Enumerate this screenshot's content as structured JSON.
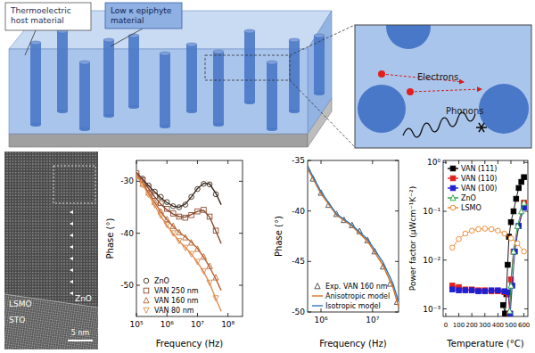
{
  "schematic": {
    "host_label": "Thermoelectric host material",
    "epiphyte_label": "Low κ epiphyte material",
    "electrons_label": "Electrons",
    "phonons_label": "Phonons"
  },
  "tem_image": {
    "labels": {
      "film": "ZnO",
      "buffer": "LSMO",
      "substrate": "STO"
    },
    "scale_bar": "5 nm"
  },
  "chart_data": [
    {
      "type": "scatter",
      "x_label": "Frequency (Hz)",
      "y_label": "Phase (°)",
      "log": "x",
      "xlim": [
        100000,
        300000000
      ],
      "xticks": [
        {
          "value": 100000,
          "label": "10⁵"
        },
        {
          "value": 1000000,
          "label": "10⁶"
        },
        {
          "value": 10000000,
          "label": "10⁷"
        },
        {
          "value": 100000000,
          "label": "10⁸"
        }
      ],
      "ylim": [
        -56,
        -26
      ],
      "yticks": [
        -30,
        -40,
        -50
      ],
      "legend": "lower left",
      "series": [
        {
          "name": "ZnO",
          "type": "scatter",
          "marker": "open-circle",
          "color": "#3d2b1f",
          "x": [
            100000,
            160000,
            250000,
            400000,
            630000,
            1000000,
            1600000,
            2500000,
            4000000,
            6300000,
            10000000,
            16000000,
            25000000,
            40000000
          ],
          "values": [
            -28.5,
            -29.5,
            -30.8,
            -32,
            -33,
            -34,
            -34.8,
            -35,
            -34.5,
            -33,
            -31.5,
            -30.5,
            -30.6,
            -32.5
          ]
        },
        {
          "name": "VAN 250 nm",
          "type": "scatter",
          "marker": "open-square",
          "color": "#8c4a2f",
          "x": [
            100000,
            160000,
            250000,
            400000,
            630000,
            1000000,
            1600000,
            2500000,
            4000000,
            6300000,
            10000000,
            16000000,
            25000000,
            40000000
          ],
          "values": [
            -28.5,
            -29.8,
            -31.3,
            -32.8,
            -34.2,
            -35.3,
            -36.2,
            -36.8,
            -37,
            -36.5,
            -35.8,
            -35.5,
            -36.8,
            -39.5
          ]
        },
        {
          "name": "VAN 160 nm",
          "type": "scatter",
          "marker": "open-triangle",
          "color": "#b8622f",
          "x": [
            100000,
            160000,
            250000,
            400000,
            630000,
            1000000,
            1600000,
            2500000,
            4000000,
            6300000,
            10000000,
            16000000,
            25000000,
            40000000
          ],
          "values": [
            -29,
            -30.5,
            -32.2,
            -34,
            -35.8,
            -37.3,
            -38.6,
            -39.8,
            -40.8,
            -41.8,
            -43,
            -44.5,
            -46.3,
            -48.5
          ]
        },
        {
          "name": "VAN 80 nm",
          "type": "scatter",
          "marker": "open-triangle-down",
          "color": "#e08a4a",
          "x": [
            100000,
            160000,
            250000,
            400000,
            630000,
            1000000,
            1600000,
            2500000,
            4000000,
            6300000,
            10000000,
            16000000,
            25000000,
            40000000
          ],
          "values": [
            -29,
            -30.7,
            -32.6,
            -34.6,
            -36.6,
            -38.4,
            -40,
            -41.5,
            -42.8,
            -44,
            -45.5,
            -47.3,
            -49.5,
            -52.5
          ]
        },
        {
          "type": "line",
          "color": "#3d2b1f",
          "x": [
            100000,
            160000,
            250000,
            400000,
            630000,
            1000000,
            1600000,
            2500000,
            4000000,
            6300000,
            10000000,
            16000000,
            25000000,
            40000000,
            60000000
          ],
          "values": [
            -28.3,
            -29.6,
            -30.9,
            -32.1,
            -33.2,
            -34.1,
            -34.8,
            -35,
            -34.4,
            -33,
            -31.4,
            -30.4,
            -30.5,
            -32.3,
            -34.5
          ]
        },
        {
          "type": "line",
          "color": "#8c4a2f",
          "x": [
            100000,
            160000,
            250000,
            400000,
            630000,
            1000000,
            1600000,
            2500000,
            4000000,
            6300000,
            10000000,
            16000000,
            25000000,
            40000000,
            60000000
          ],
          "values": [
            -28.4,
            -29.8,
            -31.4,
            -33,
            -34.4,
            -35.5,
            -36.3,
            -36.8,
            -36.9,
            -36.4,
            -35.8,
            -35.6,
            -36.9,
            -39.6,
            -42
          ]
        },
        {
          "type": "line",
          "color": "#b8622f",
          "x": [
            100000,
            160000,
            250000,
            400000,
            630000,
            1000000,
            1600000,
            2500000,
            4000000,
            6300000,
            10000000,
            16000000,
            25000000,
            40000000,
            60000000
          ],
          "values": [
            -28.8,
            -30.4,
            -32.2,
            -34.1,
            -35.9,
            -37.4,
            -38.7,
            -39.8,
            -40.7,
            -41.7,
            -42.9,
            -44.6,
            -46.5,
            -48.8,
            -51
          ]
        },
        {
          "type": "line",
          "color": "#e08a4a",
          "x": [
            100000,
            160000,
            250000,
            400000,
            630000,
            1000000,
            1600000,
            2500000,
            4000000,
            6300000,
            10000000,
            16000000,
            25000000,
            40000000,
            60000000
          ],
          "values": [
            -28.9,
            -30.6,
            -32.6,
            -34.7,
            -36.7,
            -38.5,
            -40.1,
            -41.5,
            -42.7,
            -44,
            -45.6,
            -47.4,
            -49.6,
            -52.6,
            -55
          ]
        }
      ]
    },
    {
      "type": "scatter",
      "x_label": "Frequency (Hz)",
      "y_label": "Phase (°)",
      "log": "x",
      "xlim": [
        550000,
        32000000
      ],
      "xticks": [
        {
          "value": 1000000,
          "label": "10⁶"
        },
        {
          "value": 10000000,
          "label": "10⁷"
        }
      ],
      "ylim": [
        -50,
        -35
      ],
      "yticks": [
        -35,
        -40,
        -45,
        -50
      ],
      "legend": "lower left",
      "series": [
        {
          "name": "Exp. VAN 160 nm",
          "type": "scatter",
          "marker": "open-triangle",
          "color": "#444444",
          "x": [
            550000,
            700000,
            1000000,
            1400000,
            2000000,
            2800000,
            4000000,
            5600000,
            8000000,
            11000000,
            16000000,
            22000000,
            30000000
          ],
          "values": [
            -35.8,
            -36.8,
            -38.2,
            -39.4,
            -40.3,
            -40.9,
            -41.4,
            -42,
            -42.9,
            -44,
            -45.5,
            -47.2,
            -49
          ]
        },
        {
          "name": "Anisotropic model",
          "type": "line",
          "color": "#e07020",
          "x": [
            550000,
            1000000,
            2000000,
            4000000,
            8000000,
            16000000,
            25000000,
            32000000
          ],
          "values": [
            -35.8,
            -38.3,
            -40.4,
            -41.5,
            -43,
            -45.4,
            -47.6,
            -49.5
          ]
        },
        {
          "name": "Isotropic model",
          "type": "line",
          "color": "#2f78b8",
          "x": [
            550000,
            1000000,
            2000000,
            4000000,
            8000000,
            16000000,
            25000000,
            32000000
          ],
          "values": [
            -35.6,
            -38.1,
            -40.3,
            -41.4,
            -42.8,
            -45.1,
            -47.2,
            -49
          ]
        }
      ]
    },
    {
      "type": "line",
      "x_label": "Temperature (°C)",
      "y_label": "Power factor (μWcm⁻¹K⁻²)",
      "log": "y",
      "xlim": [
        -20,
        630
      ],
      "xticks": [
        0,
        100,
        200,
        300,
        400,
        500,
        600
      ],
      "ylim": [
        0.0007,
        1.1
      ],
      "yticks": [
        {
          "value": 1,
          "label": "10⁰"
        },
        {
          "value": 0.1,
          "label": "10⁻¹"
        },
        {
          "value": 0.01,
          "label": "10⁻²"
        },
        {
          "value": 0.001,
          "label": "10⁻³"
        }
      ],
      "legend": "upper left",
      "series": [
        {
          "name": "VAN (111)",
          "type": "line",
          "marker": "square",
          "color": "#000000",
          "x": [
            440,
            455,
            465,
            475,
            485,
            500,
            520,
            540,
            560,
            580,
            600
          ],
          "values": [
            0.0012,
            0.0008,
            0.002,
            0.008,
            0.03,
            0.06,
            0.1,
            0.18,
            0.3,
            0.4,
            0.5
          ]
        },
        {
          "name": "VAN (110)",
          "type": "line",
          "marker": "square",
          "color": "#e02020",
          "x": [
            50,
            100,
            150,
            200,
            250,
            300,
            350,
            400,
            450,
            480,
            490,
            500,
            520,
            560,
            600
          ],
          "values": [
            0.003,
            0.0028,
            0.0025,
            0.0025,
            0.0024,
            0.0024,
            0.0023,
            0.0023,
            0.0022,
            0.002,
            0.0008,
            0.004,
            0.015,
            0.05,
            0.15
          ]
        },
        {
          "name": "VAN (100)",
          "type": "line",
          "marker": "square",
          "color": "#2020d0",
          "x": [
            50,
            100,
            150,
            200,
            250,
            300,
            350,
            400,
            450,
            480,
            495,
            510,
            530,
            560,
            600
          ],
          "values": [
            0.0025,
            0.0024,
            0.0024,
            0.0024,
            0.0023,
            0.0023,
            0.0024,
            0.0024,
            0.0023,
            0.0022,
            0.0008,
            0.003,
            0.015,
            0.05,
            0.12
          ]
        },
        {
          "name": "ZnO",
          "type": "line",
          "marker": "open-triangle",
          "color": "#20a040",
          "x": [
            490,
            500,
            520,
            550,
            580,
            600
          ],
          "values": [
            0.0009,
            0.003,
            0.015,
            0.05,
            0.1,
            0.15
          ]
        },
        {
          "name": "LSMO",
          "type": "line",
          "marker": "open-circle",
          "color": "#f08020",
          "x": [
            50,
            100,
            150,
            200,
            250,
            300,
            350,
            400,
            450,
            500,
            550,
            600
          ],
          "values": [
            0.018,
            0.027,
            0.035,
            0.04,
            0.043,
            0.044,
            0.043,
            0.04,
            0.035,
            0.028,
            0.022,
            0.015
          ]
        }
      ]
    }
  ]
}
